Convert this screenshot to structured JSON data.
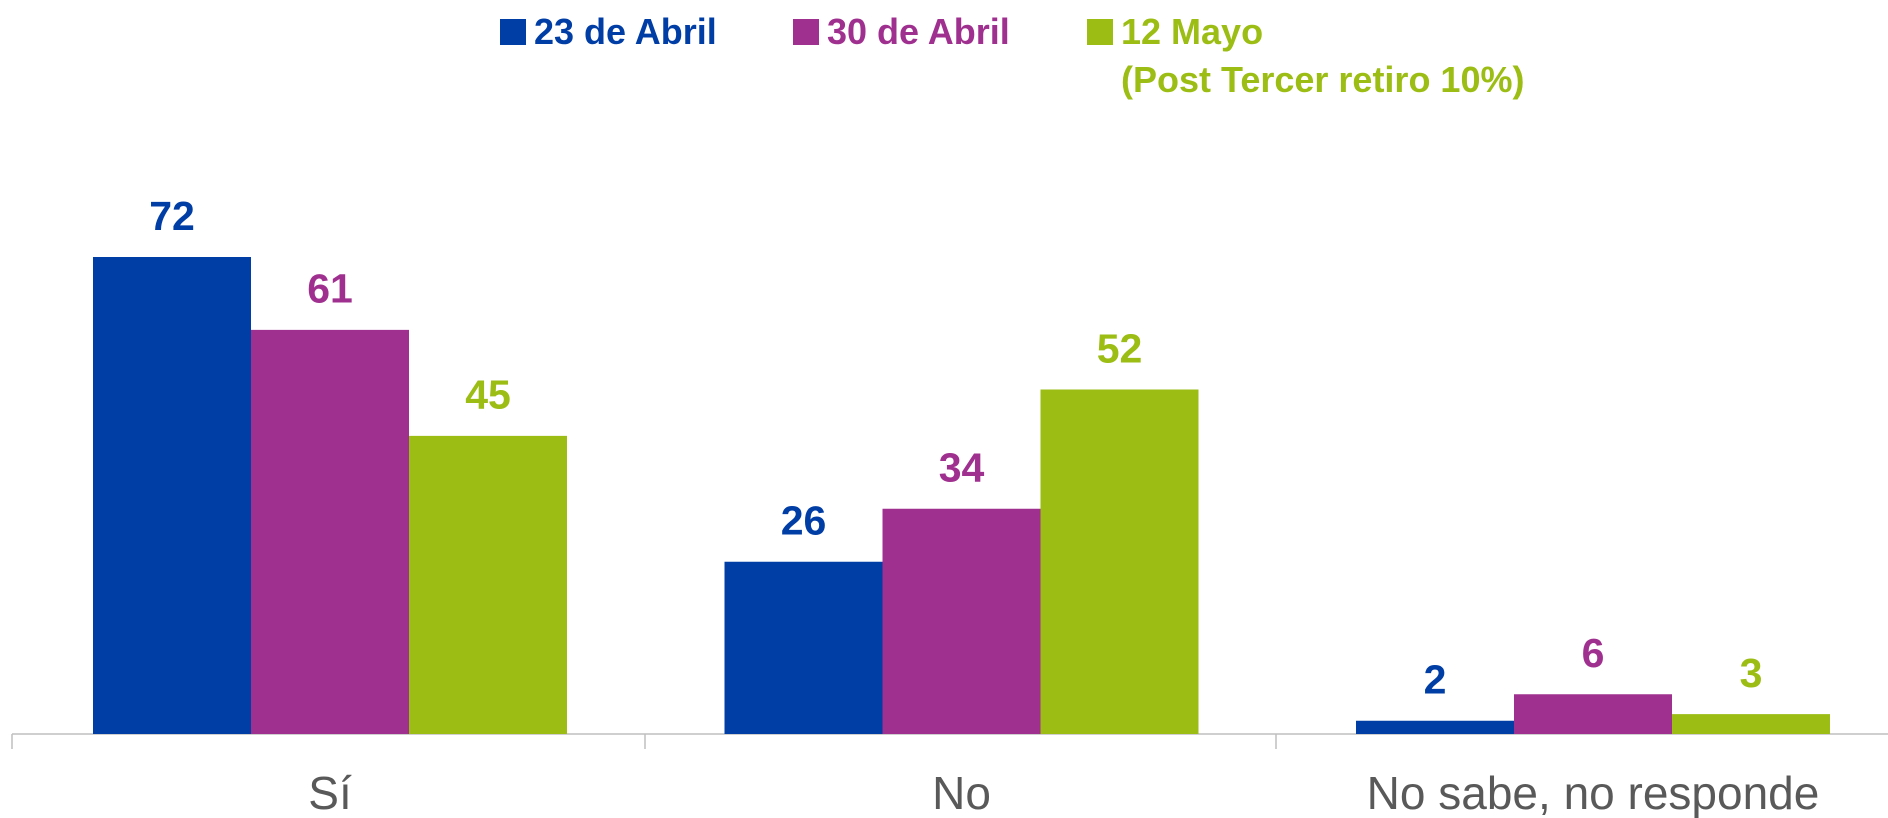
{
  "chart_data": {
    "type": "bar",
    "categories": [
      "Sí",
      "No",
      "No sabe, no responde"
    ],
    "series": [
      {
        "name": "23 de Abril",
        "color": "#003da5",
        "values": [
          72,
          26,
          2
        ]
      },
      {
        "name": "30 de Abril",
        "color": "#a0308f",
        "values": [
          61,
          34,
          6
        ]
      },
      {
        "name": "12 Mayo\n(Post Tercer retiro 10%)",
        "color": "#9bbd14",
        "values": [
          45,
          52,
          3
        ]
      }
    ],
    "legend": "top"
  }
}
